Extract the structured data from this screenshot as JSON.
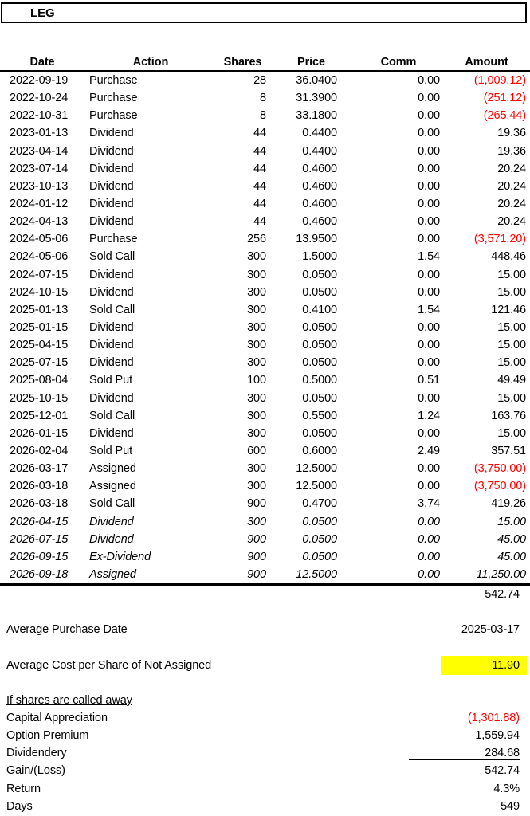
{
  "ticker": "LEG",
  "colors": {
    "negative": "#FF0000",
    "highlight": "#FFFF00",
    "text": "#000000"
  },
  "table": {
    "headers": [
      "Date",
      "Action",
      "Shares",
      "Price",
      "Comm",
      "Amount"
    ],
    "rows": [
      {
        "date": "2022-09-19",
        "action": "Purchase",
        "shares": "28",
        "price": "36.0400",
        "comm": "0.00",
        "amount": "(1,009.12)",
        "neg": true
      },
      {
        "date": "2022-10-24",
        "action": "Purchase",
        "shares": "8",
        "price": "31.3900",
        "comm": "0.00",
        "amount": "(251.12)",
        "neg": true
      },
      {
        "date": "2022-10-31",
        "action": "Purchase",
        "shares": "8",
        "price": "33.1800",
        "comm": "0.00",
        "amount": "(265.44)",
        "neg": true
      },
      {
        "date": "2023-01-13",
        "action": "Dividend",
        "shares": "44",
        "price": "0.4400",
        "comm": "0.00",
        "amount": "19.36"
      },
      {
        "date": "2023-04-14",
        "action": "Dividend",
        "shares": "44",
        "price": "0.4400",
        "comm": "0.00",
        "amount": "19.36"
      },
      {
        "date": "2023-07-14",
        "action": "Dividend",
        "shares": "44",
        "price": "0.4600",
        "comm": "0.00",
        "amount": "20.24"
      },
      {
        "date": "2023-10-13",
        "action": "Dividend",
        "shares": "44",
        "price": "0.4600",
        "comm": "0.00",
        "amount": "20.24"
      },
      {
        "date": "2024-01-12",
        "action": "Dividend",
        "shares": "44",
        "price": "0.4600",
        "comm": "0.00",
        "amount": "20.24"
      },
      {
        "date": "2024-04-13",
        "action": "Dividend",
        "shares": "44",
        "price": "0.4600",
        "comm": "0.00",
        "amount": "20.24"
      },
      {
        "date": "2024-05-06",
        "action": "Purchase",
        "shares": "256",
        "price": "13.9500",
        "comm": "0.00",
        "amount": "(3,571.20)",
        "neg": true
      },
      {
        "date": "2024-05-06",
        "action": "Sold Call",
        "shares": "300",
        "price": "1.5000",
        "comm": "1.54",
        "amount": "448.46"
      },
      {
        "date": "2024-07-15",
        "action": "Dividend",
        "shares": "300",
        "price": "0.0500",
        "comm": "0.00",
        "amount": "15.00"
      },
      {
        "date": "2024-10-15",
        "action": "Dividend",
        "shares": "300",
        "price": "0.0500",
        "comm": "0.00",
        "amount": "15.00"
      },
      {
        "date": "2025-01-13",
        "action": "Sold Call",
        "shares": "300",
        "price": "0.4100",
        "comm": "1.54",
        "amount": "121.46"
      },
      {
        "date": "2025-01-15",
        "action": "Dividend",
        "shares": "300",
        "price": "0.0500",
        "comm": "0.00",
        "amount": "15.00"
      },
      {
        "date": "2025-04-15",
        "action": "Dividend",
        "shares": "300",
        "price": "0.0500",
        "comm": "0.00",
        "amount": "15.00"
      },
      {
        "date": "2025-07-15",
        "action": "Dividend",
        "shares": "300",
        "price": "0.0500",
        "comm": "0.00",
        "amount": "15.00"
      },
      {
        "date": "2025-08-04",
        "action": "Sold Put",
        "shares": "100",
        "price": "0.5000",
        "comm": "0.51",
        "amount": "49.49"
      },
      {
        "date": "2025-10-15",
        "action": "Dividend",
        "shares": "300",
        "price": "0.0500",
        "comm": "0.00",
        "amount": "15.00"
      },
      {
        "date": "2025-12-01",
        "action": "Sold Call",
        "shares": "300",
        "price": "0.5500",
        "comm": "1.24",
        "amount": "163.76"
      },
      {
        "date": "2026-01-15",
        "action": "Dividend",
        "shares": "300",
        "price": "0.0500",
        "comm": "0.00",
        "amount": "15.00"
      },
      {
        "date": "2026-02-04",
        "action": "Sold Put",
        "shares": "600",
        "price": "0.6000",
        "comm": "2.49",
        "amount": "357.51"
      },
      {
        "date": "2026-03-17",
        "action": "Assigned",
        "shares": "300",
        "price": "12.5000",
        "comm": "0.00",
        "amount": "(3,750.00)",
        "neg": true
      },
      {
        "date": "2026-03-18",
        "action": "Assigned",
        "shares": "300",
        "price": "12.5000",
        "comm": "0.00",
        "amount": "(3,750.00)",
        "neg": true
      },
      {
        "date": "2026-03-18",
        "action": "Sold Call",
        "shares": "900",
        "price": "0.4700",
        "comm": "3.74",
        "amount": "419.26"
      },
      {
        "date": "2026-04-15",
        "action": "Dividend",
        "shares": "300",
        "price": "0.0500",
        "comm": "0.00",
        "amount": "15.00",
        "proj": true
      },
      {
        "date": "2026-07-15",
        "action": "Dividend",
        "shares": "900",
        "price": "0.0500",
        "comm": "0.00",
        "amount": "45.00",
        "proj": true
      },
      {
        "date": "2026-09-15",
        "action": "Ex-Dividend",
        "shares": "900",
        "price": "0.0500",
        "comm": "0.00",
        "amount": "45.00",
        "proj": true
      },
      {
        "date": "2026-09-18",
        "action": "Assigned",
        "shares": "900",
        "price": "12.5000",
        "comm": "0.00",
        "amount": "11,250.00",
        "proj": true
      }
    ],
    "total": "542.74"
  },
  "summary": {
    "avg_purchase_date": {
      "label": "Average Purchase Date",
      "value": "2025-03-17"
    },
    "avg_cost": {
      "label": "Average Cost per Share of Not Assigned",
      "value": "11.90"
    },
    "called_away": {
      "heading": "If shares are called away",
      "rows": [
        {
          "label": "Capital Appreciation",
          "value": "(1,301.88)",
          "neg": true
        },
        {
          "label": "Option Premium",
          "value": "1,559.94"
        },
        {
          "label": "Dividendery",
          "value": "284.68",
          "rule": true
        },
        {
          "label": "Gain/(Loss)",
          "value": "542.74"
        },
        {
          "label": "Return",
          "value": "4.3%"
        },
        {
          "label": "Days",
          "value": "549"
        }
      ]
    }
  }
}
